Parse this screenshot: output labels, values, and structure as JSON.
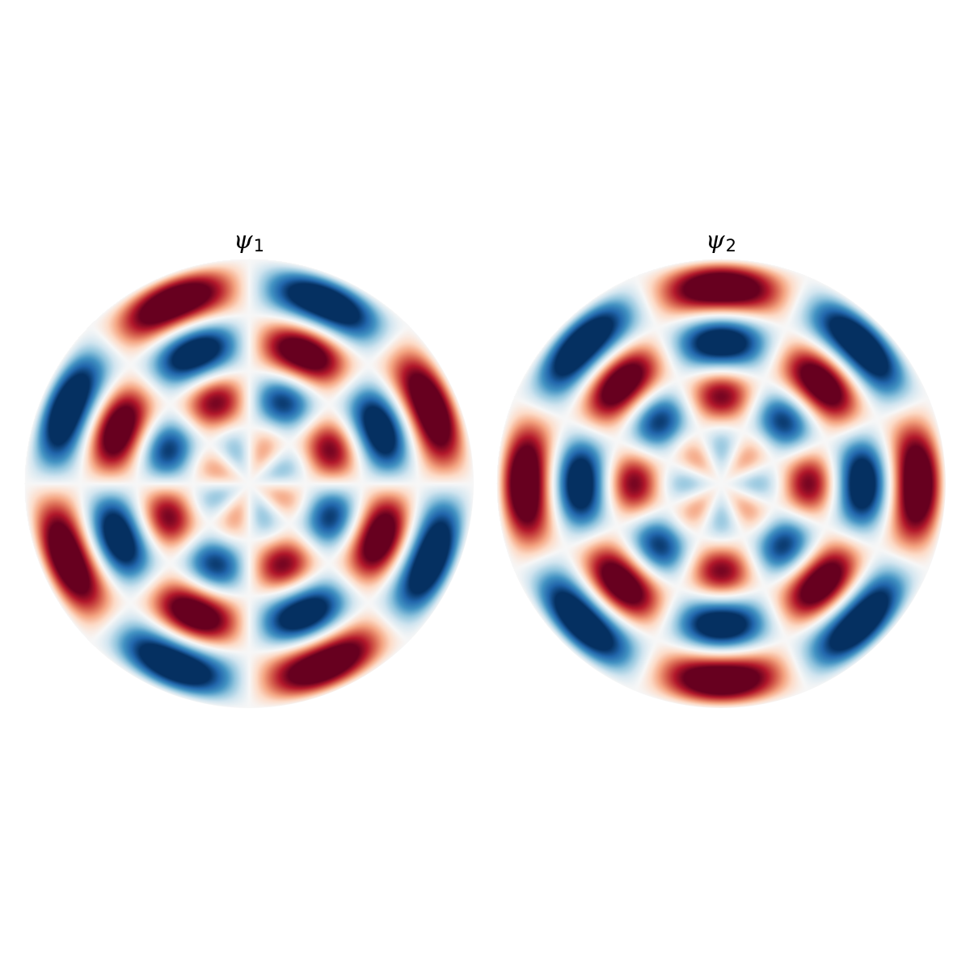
{
  "panels": [
    {
      "title_symbol": "ψ",
      "title_subscript": "1",
      "angular_order": 4,
      "phase": "sine",
      "radial_lobes": 4
    },
    {
      "title_symbol": "ψ",
      "title_subscript": "2",
      "angular_order": 4,
      "phase": "cosine",
      "radial_lobes": 4
    }
  ],
  "colormap": {
    "name": "RdBu_r",
    "stops": [
      "#053061",
      "#2166ac",
      "#4393c3",
      "#92c5de",
      "#d1e5f0",
      "#f7f7f7",
      "#fddbc7",
      "#f4a582",
      "#d6604d",
      "#b2182b",
      "#67001f"
    ]
  }
}
